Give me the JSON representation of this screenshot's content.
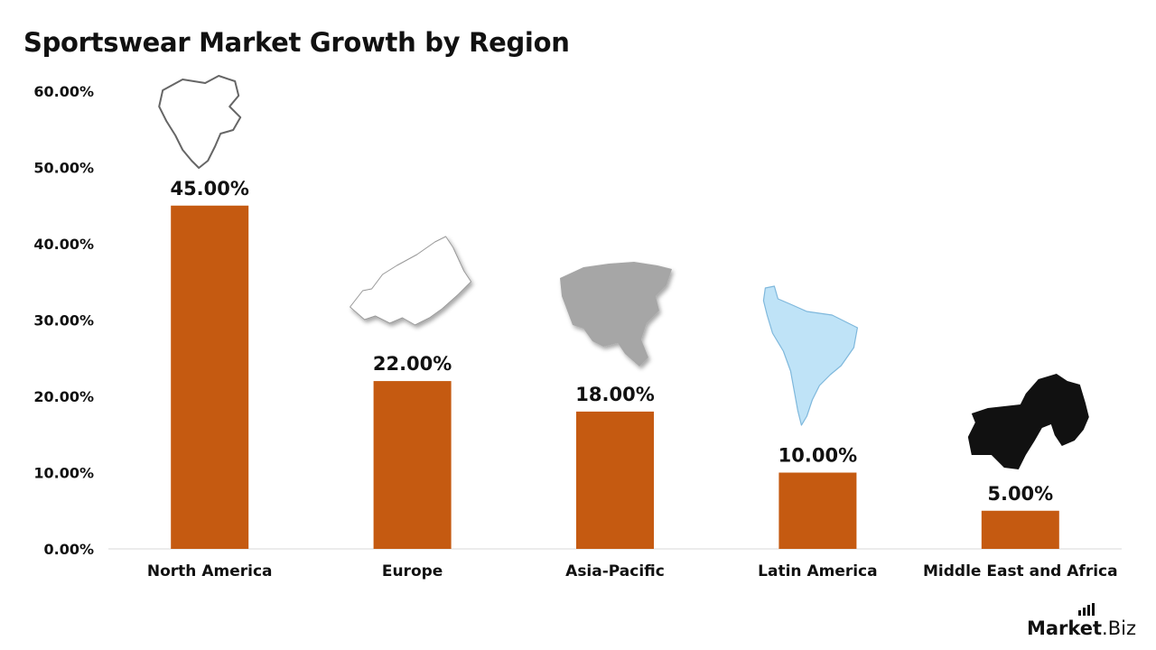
{
  "chart_data": {
    "type": "bar",
    "title": "Sportswear Market Growth by Region",
    "categories": [
      "North America",
      "Europe",
      "Asia-Pacific",
      "Latin America",
      "Middle East and Africa"
    ],
    "values": [
      45.0,
      22.0,
      18.0,
      10.0,
      5.0
    ],
    "value_labels": [
      "45.00%",
      "22.00%",
      "18.00%",
      "10.00%",
      "5.00%"
    ],
    "yticks": [
      "0.00%",
      "10.00%",
      "20.00%",
      "30.00%",
      "40.00%",
      "50.00%",
      "60.00%"
    ],
    "ylim": [
      0,
      60
    ],
    "grid": false,
    "bar_color": "#C55A11",
    "region_icons": [
      "north-america-map-icon",
      "europe-map-icon",
      "asia-map-icon",
      "south-america-map-icon",
      "middle-east-africa-map-icon"
    ]
  },
  "brand": {
    "bold": "Market",
    "light": ".Biz"
  }
}
